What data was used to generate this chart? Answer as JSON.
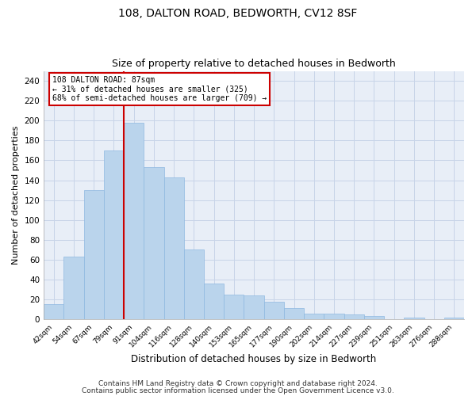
{
  "title1": "108, DALTON ROAD, BEDWORTH, CV12 8SF",
  "title2": "Size of property relative to detached houses in Bedworth",
  "xlabel": "Distribution of detached houses by size in Bedworth",
  "ylabel": "Number of detached properties",
  "categories": [
    "42sqm",
    "54sqm",
    "67sqm",
    "79sqm",
    "91sqm",
    "104sqm",
    "116sqm",
    "128sqm",
    "140sqm",
    "153sqm",
    "165sqm",
    "177sqm",
    "190sqm",
    "202sqm",
    "214sqm",
    "227sqm",
    "239sqm",
    "251sqm",
    "263sqm",
    "276sqm",
    "288sqm"
  ],
  "values": [
    15,
    63,
    130,
    170,
    198,
    153,
    143,
    70,
    36,
    25,
    24,
    18,
    11,
    6,
    6,
    5,
    3,
    0,
    2,
    0,
    2
  ],
  "bar_color": "#bad4ec",
  "bar_edge_color": "#8eb8e0",
  "vline_color": "#cc0000",
  "annotation_line1": "108 DALTON ROAD: 87sqm",
  "annotation_line2": "← 31% of detached houses are smaller (325)",
  "annotation_line3": "68% of semi-detached houses are larger (709) →",
  "annotation_box_color": "#ffffff",
  "annotation_box_edge": "#cc0000",
  "ylim": [
    0,
    250
  ],
  "yticks": [
    0,
    20,
    40,
    60,
    80,
    100,
    120,
    140,
    160,
    180,
    200,
    220,
    240
  ],
  "footer1": "Contains HM Land Registry data © Crown copyright and database right 2024.",
  "footer2": "Contains public sector information licensed under the Open Government Licence v3.0.",
  "background_color": "#ffffff",
  "plot_background": "#e8eef7",
  "grid_color": "#c8d4e8",
  "title_fontsize": 10,
  "subtitle_fontsize": 9,
  "footer_fontsize": 6.5,
  "vline_bin_index": 4
}
